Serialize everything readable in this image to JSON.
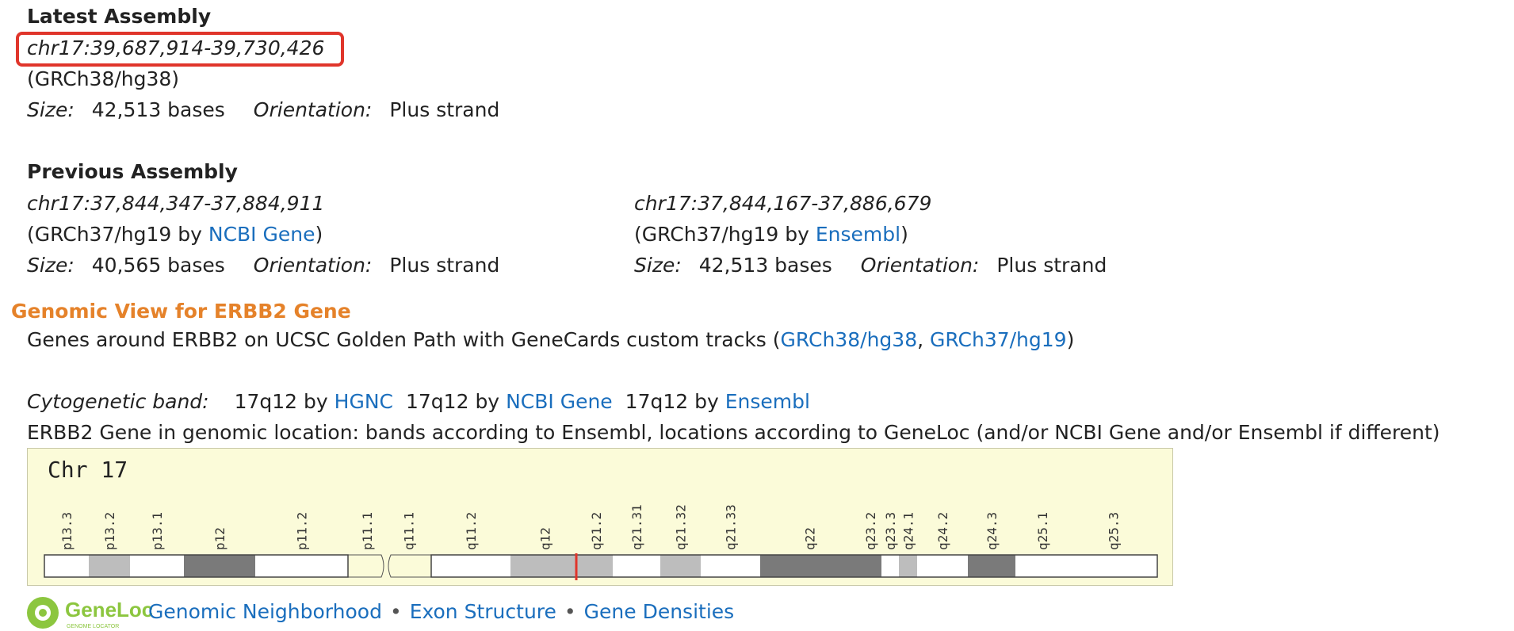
{
  "latest": {
    "heading": "Latest Assembly",
    "coords": "chr17:39,687,914-39,730,426",
    "assembly": "(GRCh38/hg38)",
    "size_label": "Size:",
    "size_value": "42,513 bases",
    "orientation_label": "Orientation:",
    "orientation_value": "Plus strand"
  },
  "previous": {
    "heading": "Previous Assembly",
    "ncbi": {
      "coords": "chr17:37,844,347-37,884,911",
      "assembly_prefix": "(GRCh37/hg19 by ",
      "source_link": "NCBI Gene",
      "assembly_suffix": ")",
      "size_label": "Size:",
      "size_value": "40,565 bases",
      "orientation_label": "Orientation:",
      "orientation_value": "Plus strand"
    },
    "ensembl": {
      "coords": "chr17:37,844,167-37,886,679",
      "assembly_prefix": "(GRCh37/hg19 by ",
      "source_link": "Ensembl",
      "assembly_suffix": ")",
      "size_label": "Size:",
      "size_value": "42,513 bases",
      "orientation_label": "Orientation:",
      "orientation_value": "Plus strand"
    }
  },
  "genomic_view": {
    "title": "Genomic View for ERBB2 Gene",
    "ucsc_prefix": "Genes around ERBB2 on UCSC Golden Path with GeneCards custom tracks (",
    "link_hg38": "GRCh38/hg38",
    "separator": ", ",
    "link_hg19": "GRCh37/hg19",
    "ucsc_suffix": ")",
    "cyto_label": "Cytogenetic band:",
    "cyto_entries": [
      {
        "band": "17q12 by ",
        "source": "HGNC"
      },
      {
        "band": "17q12 by ",
        "source": "NCBI Gene"
      },
      {
        "band": "17q12 by ",
        "source": "Ensembl"
      }
    ],
    "location_note": "ERBB2 Gene in genomic location: bands according to Ensembl, locations according to GeneLoc (and/or NCBI Gene and/or Ensembl if different)"
  },
  "ideogram": {
    "chromosome": "Chr 17",
    "bands": [
      {
        "name": "p13.3",
        "shade": "white"
      },
      {
        "name": "p13.2",
        "shade": "gray25"
      },
      {
        "name": "p13.1",
        "shade": "white"
      },
      {
        "name": "p12",
        "shade": "gray75"
      },
      {
        "name": "p11.2",
        "shade": "white"
      },
      {
        "name": "p11.1",
        "shade": "centromere"
      },
      {
        "name": "q11.1",
        "shade": "centromere"
      },
      {
        "name": "q11.2",
        "shade": "white"
      },
      {
        "name": "q12",
        "shade": "gray25"
      },
      {
        "name": "q21.2",
        "shade": "gray25"
      },
      {
        "name": "q21.31",
        "shade": "white"
      },
      {
        "name": "q21.32",
        "shade": "gray25"
      },
      {
        "name": "q21.33",
        "shade": "white"
      },
      {
        "name": "q22",
        "shade": "gray75"
      },
      {
        "name": "q23.2",
        "shade": "gray75"
      },
      {
        "name": "q23.3",
        "shade": "white"
      },
      {
        "name": "q24.1",
        "shade": "gray25"
      },
      {
        "name": "q24.2",
        "shade": "white"
      },
      {
        "name": "q24.3",
        "shade": "gray75"
      },
      {
        "name": "q25.1",
        "shade": "white"
      },
      {
        "name": "q25.3",
        "shade": "white"
      }
    ],
    "gene_marker_band": "q12",
    "marker_color": "#e0352b"
  },
  "footer": {
    "logo_text": "GeneLoc",
    "logo_subtext": "GENOME LOCATOR",
    "links": [
      "Genomic Neighborhood",
      "Exon Structure",
      "Gene Densities"
    ],
    "bullet": "•"
  },
  "colors": {
    "link": "#1a6ebd",
    "section_title": "#e5822a",
    "highlight_border": "#e0352b",
    "ideogram_bg": "#fbfbd9"
  }
}
